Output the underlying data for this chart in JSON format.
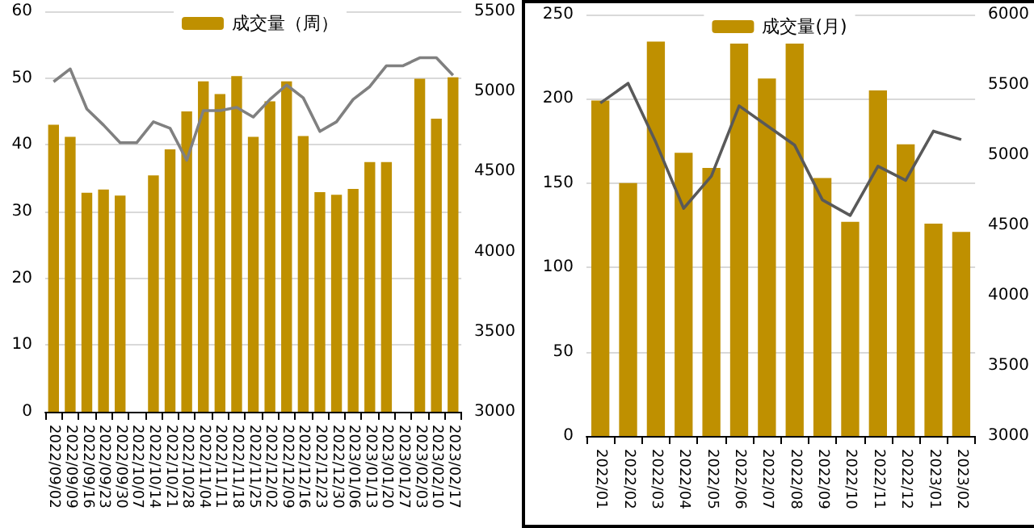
{
  "chart_data": [
    {
      "type": "bar",
      "categories": [
        "2022/09/02",
        "2022/09/09",
        "2022/09/16",
        "2022/09/23",
        "2022/09/30",
        "2022/10/07",
        "2022/10/14",
        "2022/10/21",
        "2022/10/28",
        "2022/11/04",
        "2022/11/11",
        "2022/11/18",
        "2022/11/25",
        "2022/12/02",
        "2022/12/09",
        "2022/12/16",
        "2022/12/23",
        "2022/12/30",
        "2023/01/06",
        "2023/01/13",
        "2023/01/20",
        "2023/01/27",
        "2023/02/03",
        "2023/02/10",
        "2023/02/17"
      ],
      "series": [
        {
          "name": "成交量（周）",
          "color": "#bf9000",
          "values": [
            43,
            41.2,
            32.8,
            33.3,
            32.4,
            null,
            35.4,
            39.3,
            45,
            49.5,
            47.6,
            50.3,
            41.2,
            46.5,
            49.5,
            41.3,
            32.9,
            32.5,
            33.4,
            37.4,
            37.4,
            null,
            49.9,
            43.9,
            50.1
          ]
        },
        {
          "type": "line",
          "axis": "y2",
          "color": "#808080",
          "values": [
            5060,
            5140,
            4890,
            4790,
            4680,
            4680,
            4810,
            4770,
            4570,
            4880,
            4880,
            4900,
            4840,
            4950,
            5040,
            4960,
            4750,
            4810,
            4950,
            5030,
            5160,
            5160,
            5210,
            5210,
            5100
          ]
        }
      ],
      "ylim": [
        0,
        60
      ],
      "yticks": [
        0,
        10,
        20,
        30,
        40,
        50,
        60
      ],
      "y2lim": [
        3000,
        5500
      ],
      "y2ticks": [
        3000,
        3500,
        4000,
        4500,
        5000,
        5500
      ],
      "grid": "y",
      "legend": "top"
    },
    {
      "type": "bar",
      "categories": [
        "2022/01",
        "2022/02",
        "2022/03",
        "2022/04",
        "2022/05",
        "2022/06",
        "2022/07",
        "2022/08",
        "2022/09",
        "2022/10",
        "2022/11",
        "2022/12",
        "2023/01",
        "2023/02"
      ],
      "series": [
        {
          "name": "成交量(月)",
          "color": "#bf9000",
          "values": [
            199,
            150,
            234,
            168,
            159,
            233,
            212,
            233,
            153,
            127,
            205,
            173,
            126,
            121
          ]
        },
        {
          "type": "line",
          "axis": "y2",
          "color": "#595959",
          "values": [
            5370,
            5510,
            5090,
            4620,
            4850,
            5350,
            5210,
            5070,
            4680,
            4570,
            4920,
            4820,
            5170,
            5110
          ]
        }
      ],
      "ylim": [
        0,
        250
      ],
      "yticks": [
        0,
        50,
        100,
        150,
        200,
        250
      ],
      "y2lim": [
        3000,
        6000
      ],
      "y2ticks": [
        3000,
        3500,
        4000,
        4500,
        5000,
        5500,
        6000
      ],
      "grid": "y",
      "legend": "top"
    }
  ]
}
